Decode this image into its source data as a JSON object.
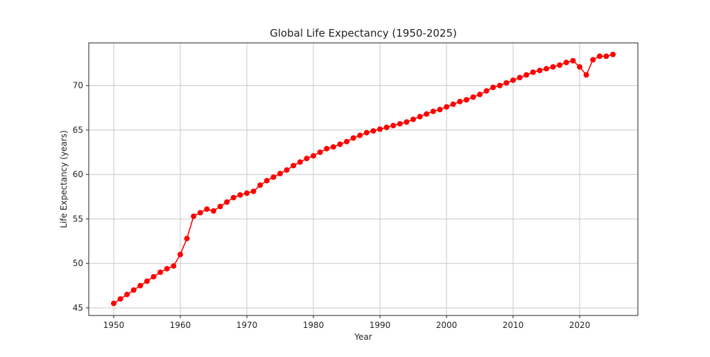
{
  "chart_data": {
    "type": "line",
    "title": "Global Life Expectancy (1950-2025)",
    "xlabel": "Year",
    "ylabel": "Life Expectancy (years)",
    "xlim": [
      1946.25,
      2028.75
    ],
    "ylim": [
      44.14,
      74.8
    ],
    "xticks": [
      1950,
      1960,
      1970,
      1980,
      1990,
      2000,
      2010,
      2020
    ],
    "yticks": [
      45,
      50,
      55,
      60,
      65,
      70
    ],
    "grid": true,
    "line_color": "#ff0000",
    "marker": "circle",
    "x": [
      1950,
      1951,
      1952,
      1953,
      1954,
      1955,
      1956,
      1957,
      1958,
      1959,
      1960,
      1961,
      1962,
      1963,
      1964,
      1965,
      1966,
      1967,
      1968,
      1969,
      1970,
      1971,
      1972,
      1973,
      1974,
      1975,
      1976,
      1977,
      1978,
      1979,
      1980,
      1981,
      1982,
      1983,
      1984,
      1985,
      1986,
      1987,
      1988,
      1989,
      1990,
      1991,
      1992,
      1993,
      1994,
      1995,
      1996,
      1997,
      1998,
      1999,
      2000,
      2001,
      2002,
      2003,
      2004,
      2005,
      2006,
      2007,
      2008,
      2009,
      2010,
      2011,
      2012,
      2013,
      2014,
      2015,
      2016,
      2017,
      2018,
      2019,
      2020,
      2021,
      2022,
      2023,
      2024,
      2025
    ],
    "y": [
      45.5,
      46.0,
      46.5,
      47.0,
      47.5,
      48.0,
      48.5,
      49.0,
      49.4,
      49.7,
      51.0,
      52.8,
      55.3,
      55.7,
      56.1,
      55.9,
      56.4,
      56.9,
      57.4,
      57.7,
      57.9,
      58.1,
      58.8,
      59.3,
      59.7,
      60.1,
      60.5,
      61.0,
      61.4,
      61.8,
      62.1,
      62.5,
      62.9,
      63.1,
      63.4,
      63.7,
      64.1,
      64.4,
      64.7,
      64.9,
      65.1,
      65.3,
      65.5,
      65.7,
      65.9,
      66.2,
      66.5,
      66.8,
      67.1,
      67.3,
      67.6,
      67.9,
      68.2,
      68.4,
      68.7,
      69.0,
      69.4,
      69.8,
      70.0,
      70.3,
      70.6,
      70.9,
      71.2,
      71.5,
      71.7,
      71.9,
      72.1,
      72.3,
      72.6,
      72.8,
      72.1,
      71.2,
      72.9,
      73.3,
      73.3,
      73.5
    ]
  }
}
